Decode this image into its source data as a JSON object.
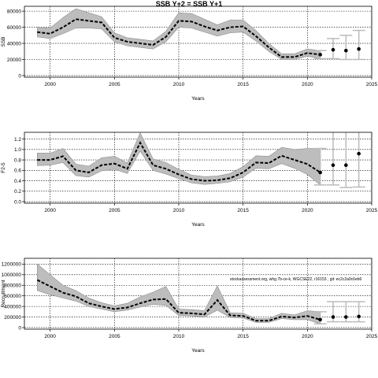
{
  "page_title": "SSB Y+2 = SSB Y+1",
  "annotation": "stockassessment.org, whg.7b-ce-k, WGCSE22, r16153 , git: ec2c2a0c6eb6",
  "styles": {
    "band_fill": "#bdbdbd",
    "band_stroke": "#8c8c8c",
    "line_color": "#000000",
    "errorbar_color": "#bbbbbb",
    "grid_color": "#000000"
  },
  "chart_data": [
    {
      "type": "line",
      "panel": "ssb",
      "title": "",
      "xlabel": "Years",
      "ylabel": "SSB",
      "xlim": [
        1998,
        2025
      ],
      "ylim": [
        -2000,
        86000
      ],
      "grid": true,
      "x_ticks": [
        2000,
        2005,
        2010,
        2015,
        2020,
        2025
      ],
      "x_tick_labels": [
        "2000",
        "2005",
        "2010",
        "2015",
        "2020",
        "2025"
      ],
      "y_ticks": [
        0,
        20000,
        40000,
        60000,
        80000
      ],
      "y_tick_labels": [
        "0",
        "20000",
        "40000",
        "60000",
        "80000"
      ],
      "series": [
        {
          "x": [
            1999,
            2000,
            2001,
            2002,
            2003,
            2004,
            2005,
            2006,
            2007,
            2008,
            2009,
            2010,
            2011,
            2012,
            2013,
            2014,
            2015,
            2016,
            2017,
            2018,
            2019,
            2020,
            2021
          ],
          "estimate": [
            54000,
            52000,
            60000,
            70000,
            68000,
            66000,
            47000,
            42000,
            40000,
            38000,
            48000,
            68000,
            67000,
            61000,
            56000,
            60000,
            61000,
            49000,
            35000,
            23000,
            23000,
            28000,
            26000
          ],
          "lower": [
            48000,
            46000,
            52000,
            59000,
            59000,
            58000,
            42000,
            37000,
            35000,
            33000,
            42000,
            60000,
            59000,
            54000,
            49000,
            53000,
            54000,
            43000,
            30000,
            20000,
            20000,
            24000,
            21000
          ],
          "upper": [
            60000,
            59000,
            72000,
            83000,
            78000,
            73000,
            53000,
            47000,
            45000,
            43000,
            55000,
            78000,
            77000,
            70000,
            63000,
            69000,
            69000,
            56000,
            40000,
            27000,
            27000,
            33000,
            31000
          ]
        }
      ],
      "forecast": {
        "x": [
          2021,
          2022,
          2023,
          2024
        ],
        "median": [
          26000,
          32000,
          31000,
          33000
        ],
        "lower": [
          21000,
          21000,
          20000,
          20000
        ],
        "upper": [
          31000,
          46000,
          50000,
          56000
        ]
      }
    },
    {
      "type": "line",
      "panel": "fbar",
      "title": "",
      "xlabel": "Years",
      "ylabel": "F2-5",
      "xlim": [
        1998,
        2025
      ],
      "ylim": [
        -0.03,
        1.33
      ],
      "grid": true,
      "x_ticks": [
        2000,
        2005,
        2010,
        2015,
        2020,
        2025
      ],
      "x_tick_labels": [
        "2000",
        "2005",
        "2010",
        "2015",
        "2020",
        "2025"
      ],
      "y_ticks": [
        0.0,
        0.2,
        0.4,
        0.6,
        0.8,
        1.0,
        1.2
      ],
      "y_tick_labels": [
        "0.0",
        "0.2",
        "0.4",
        "0.6",
        "0.8",
        "1.0",
        "1.2"
      ],
      "series": [
        {
          "x": [
            1999,
            2000,
            2001,
            2002,
            2003,
            2004,
            2005,
            2006,
            2007,
            2008,
            2009,
            2010,
            2011,
            2012,
            2013,
            2014,
            2015,
            2016,
            2017,
            2018,
            2019,
            2020,
            2021
          ],
          "estimate": [
            0.8,
            0.8,
            0.87,
            0.6,
            0.56,
            0.7,
            0.73,
            0.63,
            1.13,
            0.7,
            0.63,
            0.52,
            0.43,
            0.4,
            0.41,
            0.45,
            0.56,
            0.75,
            0.74,
            0.88,
            0.8,
            0.72,
            0.56
          ],
          "lower": [
            0.69,
            0.7,
            0.75,
            0.5,
            0.47,
            0.59,
            0.62,
            0.54,
            0.97,
            0.6,
            0.53,
            0.44,
            0.36,
            0.33,
            0.35,
            0.38,
            0.47,
            0.64,
            0.63,
            0.73,
            0.64,
            0.52,
            0.32
          ],
          "upper": [
            0.93,
            0.93,
            1.02,
            0.72,
            0.68,
            0.84,
            0.87,
            0.74,
            1.32,
            0.82,
            0.75,
            0.62,
            0.51,
            0.48,
            0.49,
            0.54,
            0.67,
            0.88,
            0.87,
            1.04,
            1.0,
            1.02,
            1.02
          ]
        }
      ],
      "forecast": {
        "x": [
          2021,
          2022,
          2023,
          2024
        ],
        "median": [
          0.56,
          0.7,
          0.7,
          0.92
        ],
        "lower": [
          0.32,
          0.32,
          0.27,
          0.28
        ],
        "upper": [
          1.02,
          1.45,
          1.45,
          1.45
        ]
      }
    },
    {
      "type": "line",
      "panel": "recruitment",
      "title": "",
      "xlabel": "Years",
      "ylabel": "Recruitment",
      "xlim": [
        1998,
        2025
      ],
      "ylim": [
        -30000,
        1310000
      ],
      "grid": true,
      "x_ticks": [
        2000,
        2005,
        2010,
        2015,
        2020,
        2025
      ],
      "x_tick_labels": [
        "2000",
        "2005",
        "2010",
        "2015",
        "2020",
        "2025"
      ],
      "y_ticks": [
        0,
        200000,
        400000,
        600000,
        800000,
        1000000,
        1200000
      ],
      "y_tick_labels": [
        "0",
        "200000",
        "400000",
        "600000",
        "800000",
        "1000000",
        "1200000"
      ],
      "series": [
        {
          "x": [
            1999,
            2000,
            2001,
            2002,
            2003,
            2004,
            2005,
            2006,
            2007,
            2008,
            2009,
            2010,
            2011,
            2012,
            2013,
            2014,
            2015,
            2016,
            2017,
            2018,
            2019,
            2020,
            2021
          ],
          "estimate": [
            900000,
            780000,
            660000,
            590000,
            460000,
            400000,
            350000,
            380000,
            460000,
            530000,
            540000,
            280000,
            270000,
            250000,
            520000,
            230000,
            220000,
            130000,
            130000,
            210000,
            190000,
            220000,
            150000
          ],
          "lower": [
            700000,
            620000,
            560000,
            500000,
            400000,
            350000,
            300000,
            330000,
            390000,
            440000,
            420000,
            230000,
            220000,
            200000,
            330000,
            190000,
            180000,
            100000,
            100000,
            170000,
            150000,
            150000,
            70000
          ],
          "upper": [
            1200000,
            1000000,
            800000,
            700000,
            560000,
            470000,
            410000,
            460000,
            580000,
            670000,
            780000,
            350000,
            340000,
            320000,
            790000,
            280000,
            270000,
            170000,
            170000,
            270000,
            240000,
            320000,
            300000
          ]
        }
      ],
      "forecast": {
        "x": [
          2021,
          2022,
          2023,
          2024
        ],
        "median": [
          150000,
          200000,
          200000,
          210000
        ],
        "lower": [
          70000,
          110000,
          110000,
          110000
        ],
        "upper": [
          300000,
          490000,
          490000,
          490000
        ]
      }
    }
  ]
}
